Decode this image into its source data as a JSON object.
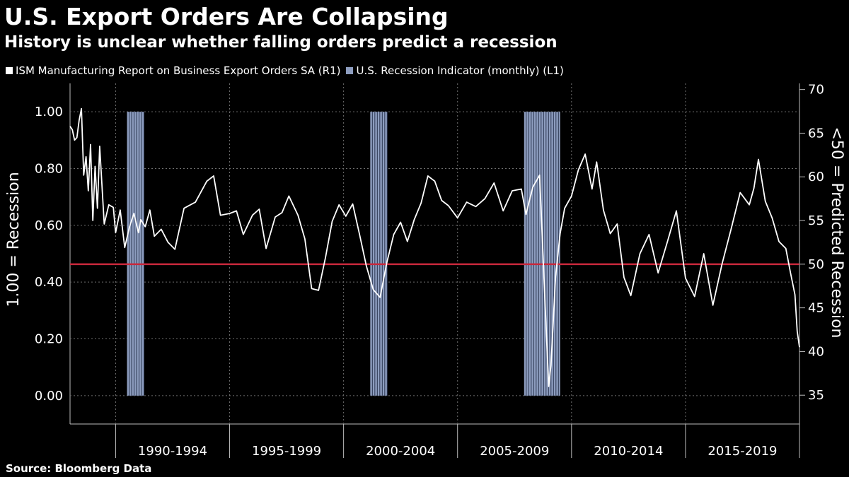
{
  "header": {
    "title": "U.S. Export Orders Are Collapsing",
    "subtitle": "History is unclear whether falling orders predict a recession"
  },
  "legend": {
    "items": [
      {
        "label": "ISM Manufacturing Report on Business Export Orders SA  (R1)",
        "color": "#ffffff"
      },
      {
        "label": "U.S. Recession Indicator (monthly)  (L1)",
        "color": "#8d9dbf"
      }
    ]
  },
  "footer": {
    "source": "Source: Bloomberg Data"
  },
  "colors": {
    "background": "#000000",
    "line": "#ffffff",
    "recession": "#8d9dbf",
    "threshold": "#c8283c",
    "grid": "#6e6e6e"
  },
  "chart_data": {
    "type": "line",
    "title": "U.S. Export Orders Are Collapsing",
    "subtitle": "History is unclear whether falling orders predict a recession",
    "x_range": [
      1988.0,
      2020.0
    ],
    "x_categories": [
      "1990-1994",
      "1995-1999",
      "2000-2004",
      "2005-2009",
      "2010-2014",
      "2015-2019"
    ],
    "left_axis": {
      "label": "1.00 = Recession",
      "ylim": [
        -0.1,
        1.1
      ],
      "ticks": [
        0.0,
        0.2,
        0.4,
        0.6,
        0.8,
        1.0
      ],
      "tick_labels": [
        "0.00",
        "0.20",
        "0.40",
        "0.60",
        "0.80",
        "1.00"
      ]
    },
    "right_axis": {
      "label": "<50 = Predicted Recession",
      "ylim": [
        31.7,
        70.7
      ],
      "ticks": [
        35,
        40,
        45,
        50,
        55,
        60,
        65,
        70
      ],
      "tick_labels": [
        "35",
        "40",
        "45",
        "50",
        "55",
        "60",
        "65",
        "70"
      ]
    },
    "threshold": {
      "value": 50,
      "axis": "right"
    },
    "recessions": [
      {
        "name": "Recession Indicator 1990-91",
        "start": 1990.5,
        "end": 1991.25,
        "value": 1
      },
      {
        "name": "Recession Indicator 2001",
        "start": 2001.17,
        "end": 2001.92,
        "value": 1
      },
      {
        "name": "Recession Indicator 2007-09",
        "start": 2007.92,
        "end": 2009.5,
        "value": 1
      }
    ],
    "series": [
      {
        "name": "ISM Manufacturing Report on Business Export Orders SA (R1)",
        "axis": "right",
        "x": [
          1988.0,
          1988.1,
          1988.2,
          1988.3,
          1988.4,
          1988.5,
          1988.6,
          1988.7,
          1988.8,
          1988.9,
          1989.0,
          1989.1,
          1989.2,
          1989.3,
          1989.5,
          1989.7,
          1989.9,
          1990.0,
          1990.2,
          1990.4,
          1990.6,
          1990.8,
          1991.0,
          1991.1,
          1991.3,
          1991.5,
          1991.7,
          1992.0,
          1992.3,
          1992.6,
          1993.0,
          1993.5,
          1994.0,
          1994.3,
          1994.6,
          1995.0,
          1995.3,
          1995.6,
          1996.0,
          1996.3,
          1996.6,
          1997.0,
          1997.3,
          1997.6,
          1998.0,
          1998.3,
          1998.6,
          1998.9,
          1999.2,
          1999.5,
          1999.8,
          2000.1,
          2000.4,
          2000.7,
          2001.0,
          2001.3,
          2001.6,
          2001.9,
          2002.2,
          2002.5,
          2002.8,
          2003.1,
          2003.4,
          2003.7,
          2004.0,
          2004.3,
          2004.6,
          2005.0,
          2005.4,
          2005.8,
          2006.2,
          2006.6,
          2007.0,
          2007.4,
          2007.8,
          2008.0,
          2008.3,
          2008.6,
          2008.9,
          2009.0,
          2009.1,
          2009.3,
          2009.5,
          2009.7,
          2010.0,
          2010.3,
          2010.6,
          2010.9,
          2011.1,
          2011.4,
          2011.7,
          2012.0,
          2012.3,
          2012.6,
          2013.0,
          2013.4,
          2013.8,
          2014.2,
          2014.6,
          2015.0,
          2015.4,
          2015.8,
          2016.2,
          2016.6,
          2017.0,
          2017.4,
          2017.8,
          2018.0,
          2018.2,
          2018.5,
          2018.8,
          2019.1,
          2019.4,
          2019.6,
          2019.8,
          2019.9,
          2020.0
        ],
        "values": [
          65.8,
          65.4,
          64.2,
          64.5,
          66.5,
          67.8,
          60.2,
          62.3,
          58.4,
          63.7,
          55.0,
          61.2,
          56.4,
          63.5,
          54.6,
          56.8,
          56.5,
          53.6,
          56.2,
          51.9,
          54.2,
          55.8,
          53.6,
          55.1,
          54.3,
          56.2,
          53.2,
          54.0,
          52.5,
          51.7,
          56.4,
          57.1,
          59.5,
          60.1,
          55.6,
          55.8,
          56.1,
          53.4,
          55.6,
          56.3,
          51.8,
          55.4,
          55.9,
          57.8,
          55.6,
          52.9,
          47.2,
          47.0,
          50.7,
          54.9,
          56.8,
          55.5,
          56.9,
          53.4,
          49.8,
          47.1,
          46.2,
          50.2,
          53.4,
          54.8,
          52.6,
          55.1,
          57.0,
          60.1,
          59.5,
          57.3,
          56.7,
          55.3,
          57.1,
          56.6,
          57.5,
          59.3,
          56.1,
          58.4,
          58.6,
          55.7,
          58.8,
          60.2,
          41.8,
          36.0,
          38.5,
          48.6,
          53.5,
          56.4,
          57.8,
          60.8,
          62.6,
          58.6,
          61.7,
          56.2,
          53.5,
          54.6,
          48.5,
          46.4,
          51.2,
          53.4,
          49.0,
          52.5,
          56.1,
          48.4,
          46.3,
          51.2,
          45.3,
          50.0,
          54.0,
          58.2,
          56.8,
          58.7,
          62.0,
          57.2,
          55.3,
          52.6,
          51.8,
          49.1,
          46.5,
          42.3,
          40.5
        ]
      }
    ]
  }
}
